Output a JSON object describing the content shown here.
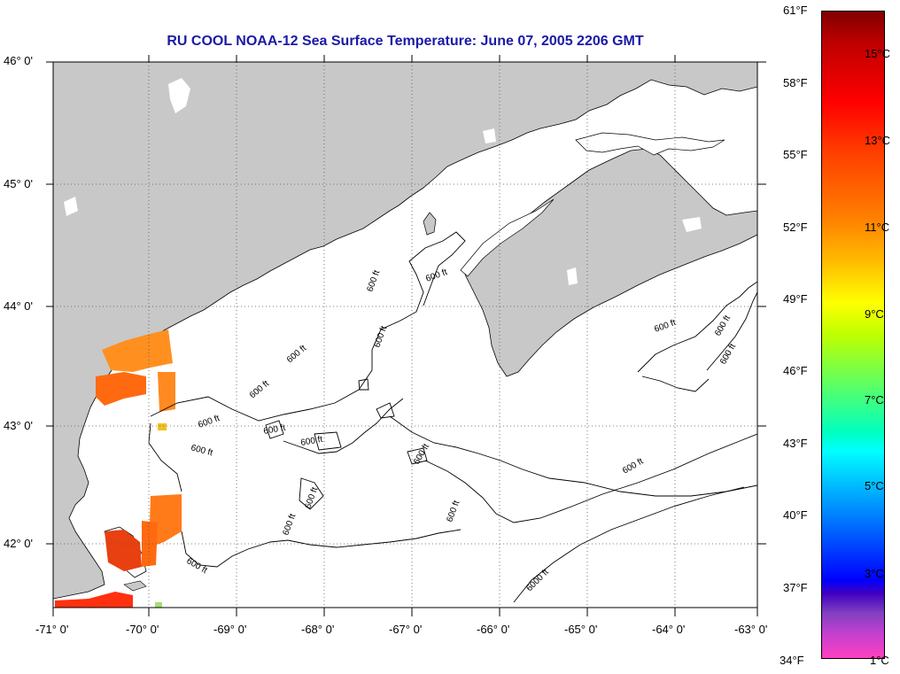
{
  "title": "RU COOL  NOAA-12  Sea Surface Temperature:  June 07, 2005 2206 GMT",
  "axes": {
    "lon_labels": [
      "-71° 0'",
      "-70° 0'",
      "-69° 0'",
      "-68° 0'",
      "-67° 0'",
      "-66° 0'",
      "-65° 0'",
      "-64° 0'",
      "-63° 0'"
    ],
    "lat_labels": [
      "46° 0'",
      "45° 0'",
      "44° 0'",
      "43° 0'",
      "42° 0'"
    ]
  },
  "colorbar": {
    "fahrenheit": [
      "61°F",
      "58°F",
      "55°F",
      "52°F",
      "49°F",
      "46°F",
      "43°F",
      "40°F",
      "37°F",
      "34°F"
    ],
    "celsius": [
      "15°C",
      "13°C",
      "11°C",
      "9°C",
      "7°C",
      "5°C",
      "3°C",
      "1°C"
    ]
  },
  "contour_label": "600 ft",
  "contour_label_deep": "6000 ft",
  "colors": {
    "land": "#c8c8c8",
    "ocean": "#ffffff",
    "title": "#1a1aa6",
    "warm": "#ff6a10",
    "hot": "#e03010",
    "orange": "#ff9020"
  }
}
